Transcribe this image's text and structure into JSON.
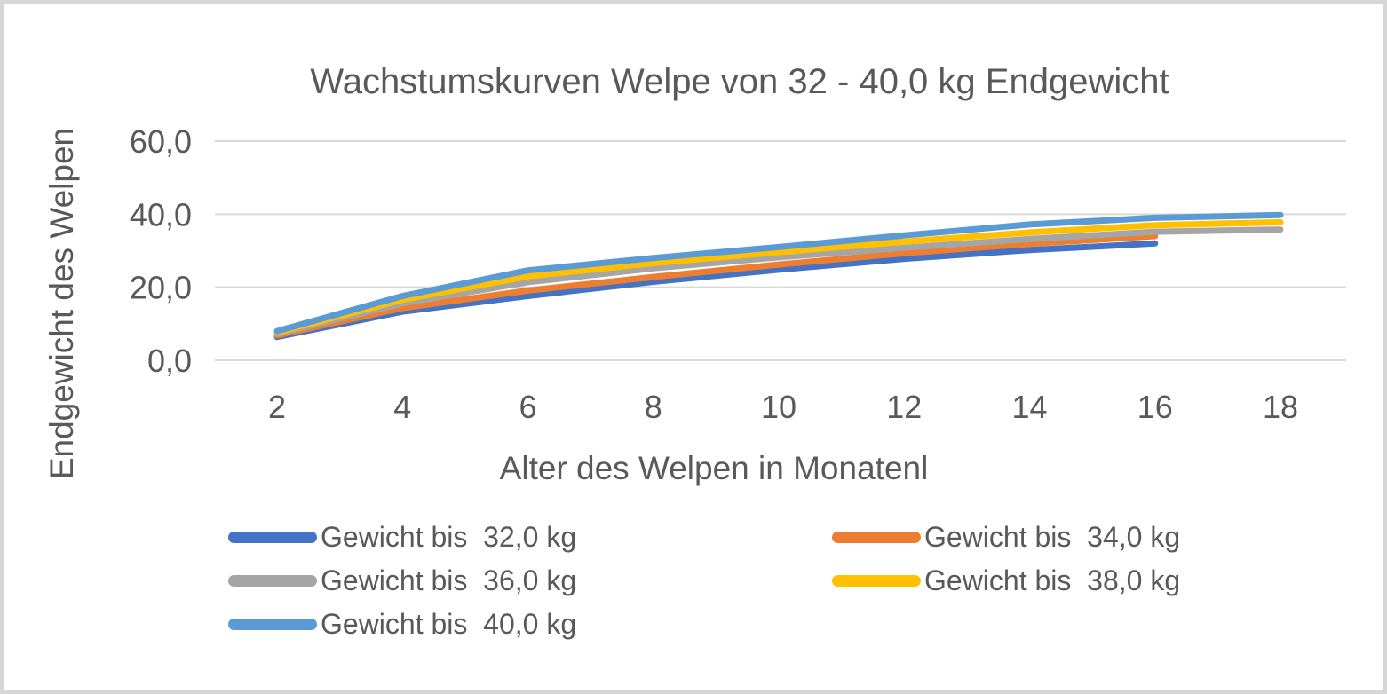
{
  "frame": {
    "background_color": "#ffffff",
    "border_color": "#d6d6d6",
    "text_color": "#595959",
    "gridline_color": "#d9d9d9"
  },
  "chart_data": {
    "type": "line",
    "title": "Wachstumskurven Welpe von 32 - 40,0 kg Endgewicht",
    "xlabel": "Alter des Welpen in Monatenl",
    "ylabel": "Endgewicht des Welpen",
    "x_ticks": [
      2,
      4,
      6,
      8,
      10,
      12,
      14,
      16,
      18
    ],
    "y_ticks": [
      {
        "label": "0,0",
        "value": 0
      },
      {
        "label": "20,0",
        "value": 20
      },
      {
        "label": "40,0",
        "value": 40
      },
      {
        "label": "60,0",
        "value": 60
      }
    ],
    "xlim": [
      2,
      18
    ],
    "ylim": [
      0,
      60
    ],
    "grid": "horizontal",
    "legend_position": "bottom-two-columns",
    "series": [
      {
        "name": "Gewicht bis  32,0 kg",
        "color": "#4472C4",
        "x": [
          2,
          4,
          6,
          8,
          10,
          12,
          14,
          16
        ],
        "values": [
          6.4,
          13.3,
          17.6,
          21.5,
          24.8,
          27.8,
          30.2,
          32.0
        ]
      },
      {
        "name": "Gewicht bis  34,0 kg",
        "color": "#ED7D31",
        "x": [
          2,
          4,
          6,
          8,
          10,
          12,
          14,
          16
        ],
        "values": [
          6.8,
          14.3,
          19.1,
          22.8,
          26.2,
          29.3,
          31.9,
          34.0
        ]
      },
      {
        "name": "Gewicht bis  36,0 kg",
        "color": "#A5A5A5",
        "x": [
          2,
          4,
          6,
          8,
          10,
          12,
          14,
          16,
          18
        ],
        "values": [
          7.2,
          15.6,
          21.4,
          25.2,
          28.2,
          30.8,
          33.2,
          35.2,
          35.8
        ]
      },
      {
        "name": "Gewicht bis  38,0 kg",
        "color": "#FFC000",
        "x": [
          2,
          4,
          6,
          8,
          10,
          12,
          14,
          16,
          18
        ],
        "values": [
          7.6,
          16.6,
          23.0,
          26.6,
          29.6,
          32.5,
          35.0,
          37.0,
          37.8
        ]
      },
      {
        "name": "Gewicht bis  40,0 kg",
        "color": "#5B9BD5",
        "x": [
          2,
          4,
          6,
          8,
          10,
          12,
          14,
          16,
          18
        ],
        "values": [
          8.0,
          17.6,
          24.6,
          28.0,
          31.0,
          34.2,
          37.2,
          39.0,
          39.8
        ]
      }
    ]
  }
}
